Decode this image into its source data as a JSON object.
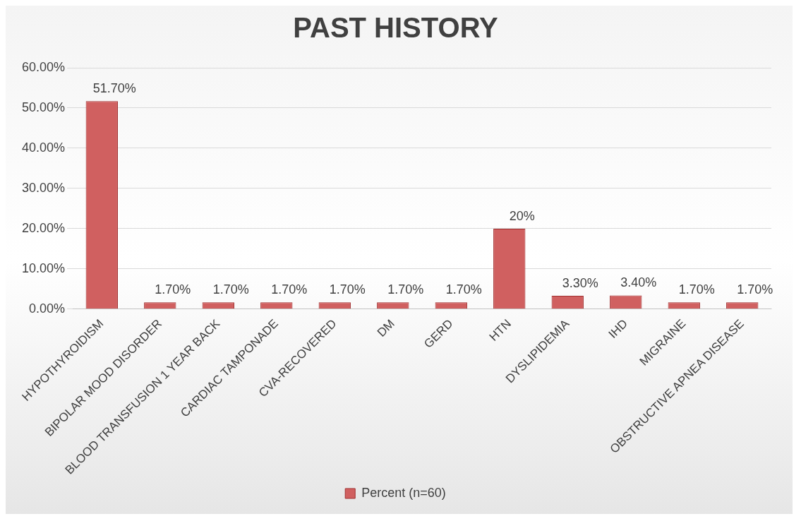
{
  "chart_data": {
    "type": "bar",
    "title": "PAST HISTORY",
    "categories": [
      "HYPOTHYROIDISM",
      "BIPOLAR MOOD DISORDER",
      "BLOOD TRANSFUSION 1 YEAR BACK",
      "CARDIAC TAMPONADE",
      "CVA-RECOVERED",
      "DM",
      "GERD",
      "HTN",
      "DYSLIPIDEMIA",
      "IHD",
      "MIGRAINE",
      "OBSTRUCTIVE APNEA DISEASE"
    ],
    "series": [
      {
        "name": "Percent (n=60)",
        "color": "#d06060",
        "values": [
          51.7,
          1.7,
          1.7,
          1.7,
          1.7,
          1.7,
          1.7,
          20,
          3.3,
          3.4,
          1.7,
          1.7
        ],
        "value_labels": [
          "51.70%",
          "1.70%",
          "1.70%",
          "1.70%",
          "1.70%",
          "1.70%",
          "1.70%",
          "20%",
          "3.30%",
          "3.40%",
          "1.70%",
          "1.70%"
        ]
      }
    ],
    "ylim": [
      0,
      60
    ],
    "yticks": [
      {
        "value": 0,
        "label": "0.00%"
      },
      {
        "value": 10,
        "label": "10.00%"
      },
      {
        "value": 20,
        "label": "20.00%"
      },
      {
        "value": 30,
        "label": "30.00%"
      },
      {
        "value": 40,
        "label": "40.00%"
      },
      {
        "value": 50,
        "label": "50.00%"
      },
      {
        "value": 60,
        "label": "60.00%"
      }
    ],
    "grid": "y",
    "legend": "bottom"
  }
}
